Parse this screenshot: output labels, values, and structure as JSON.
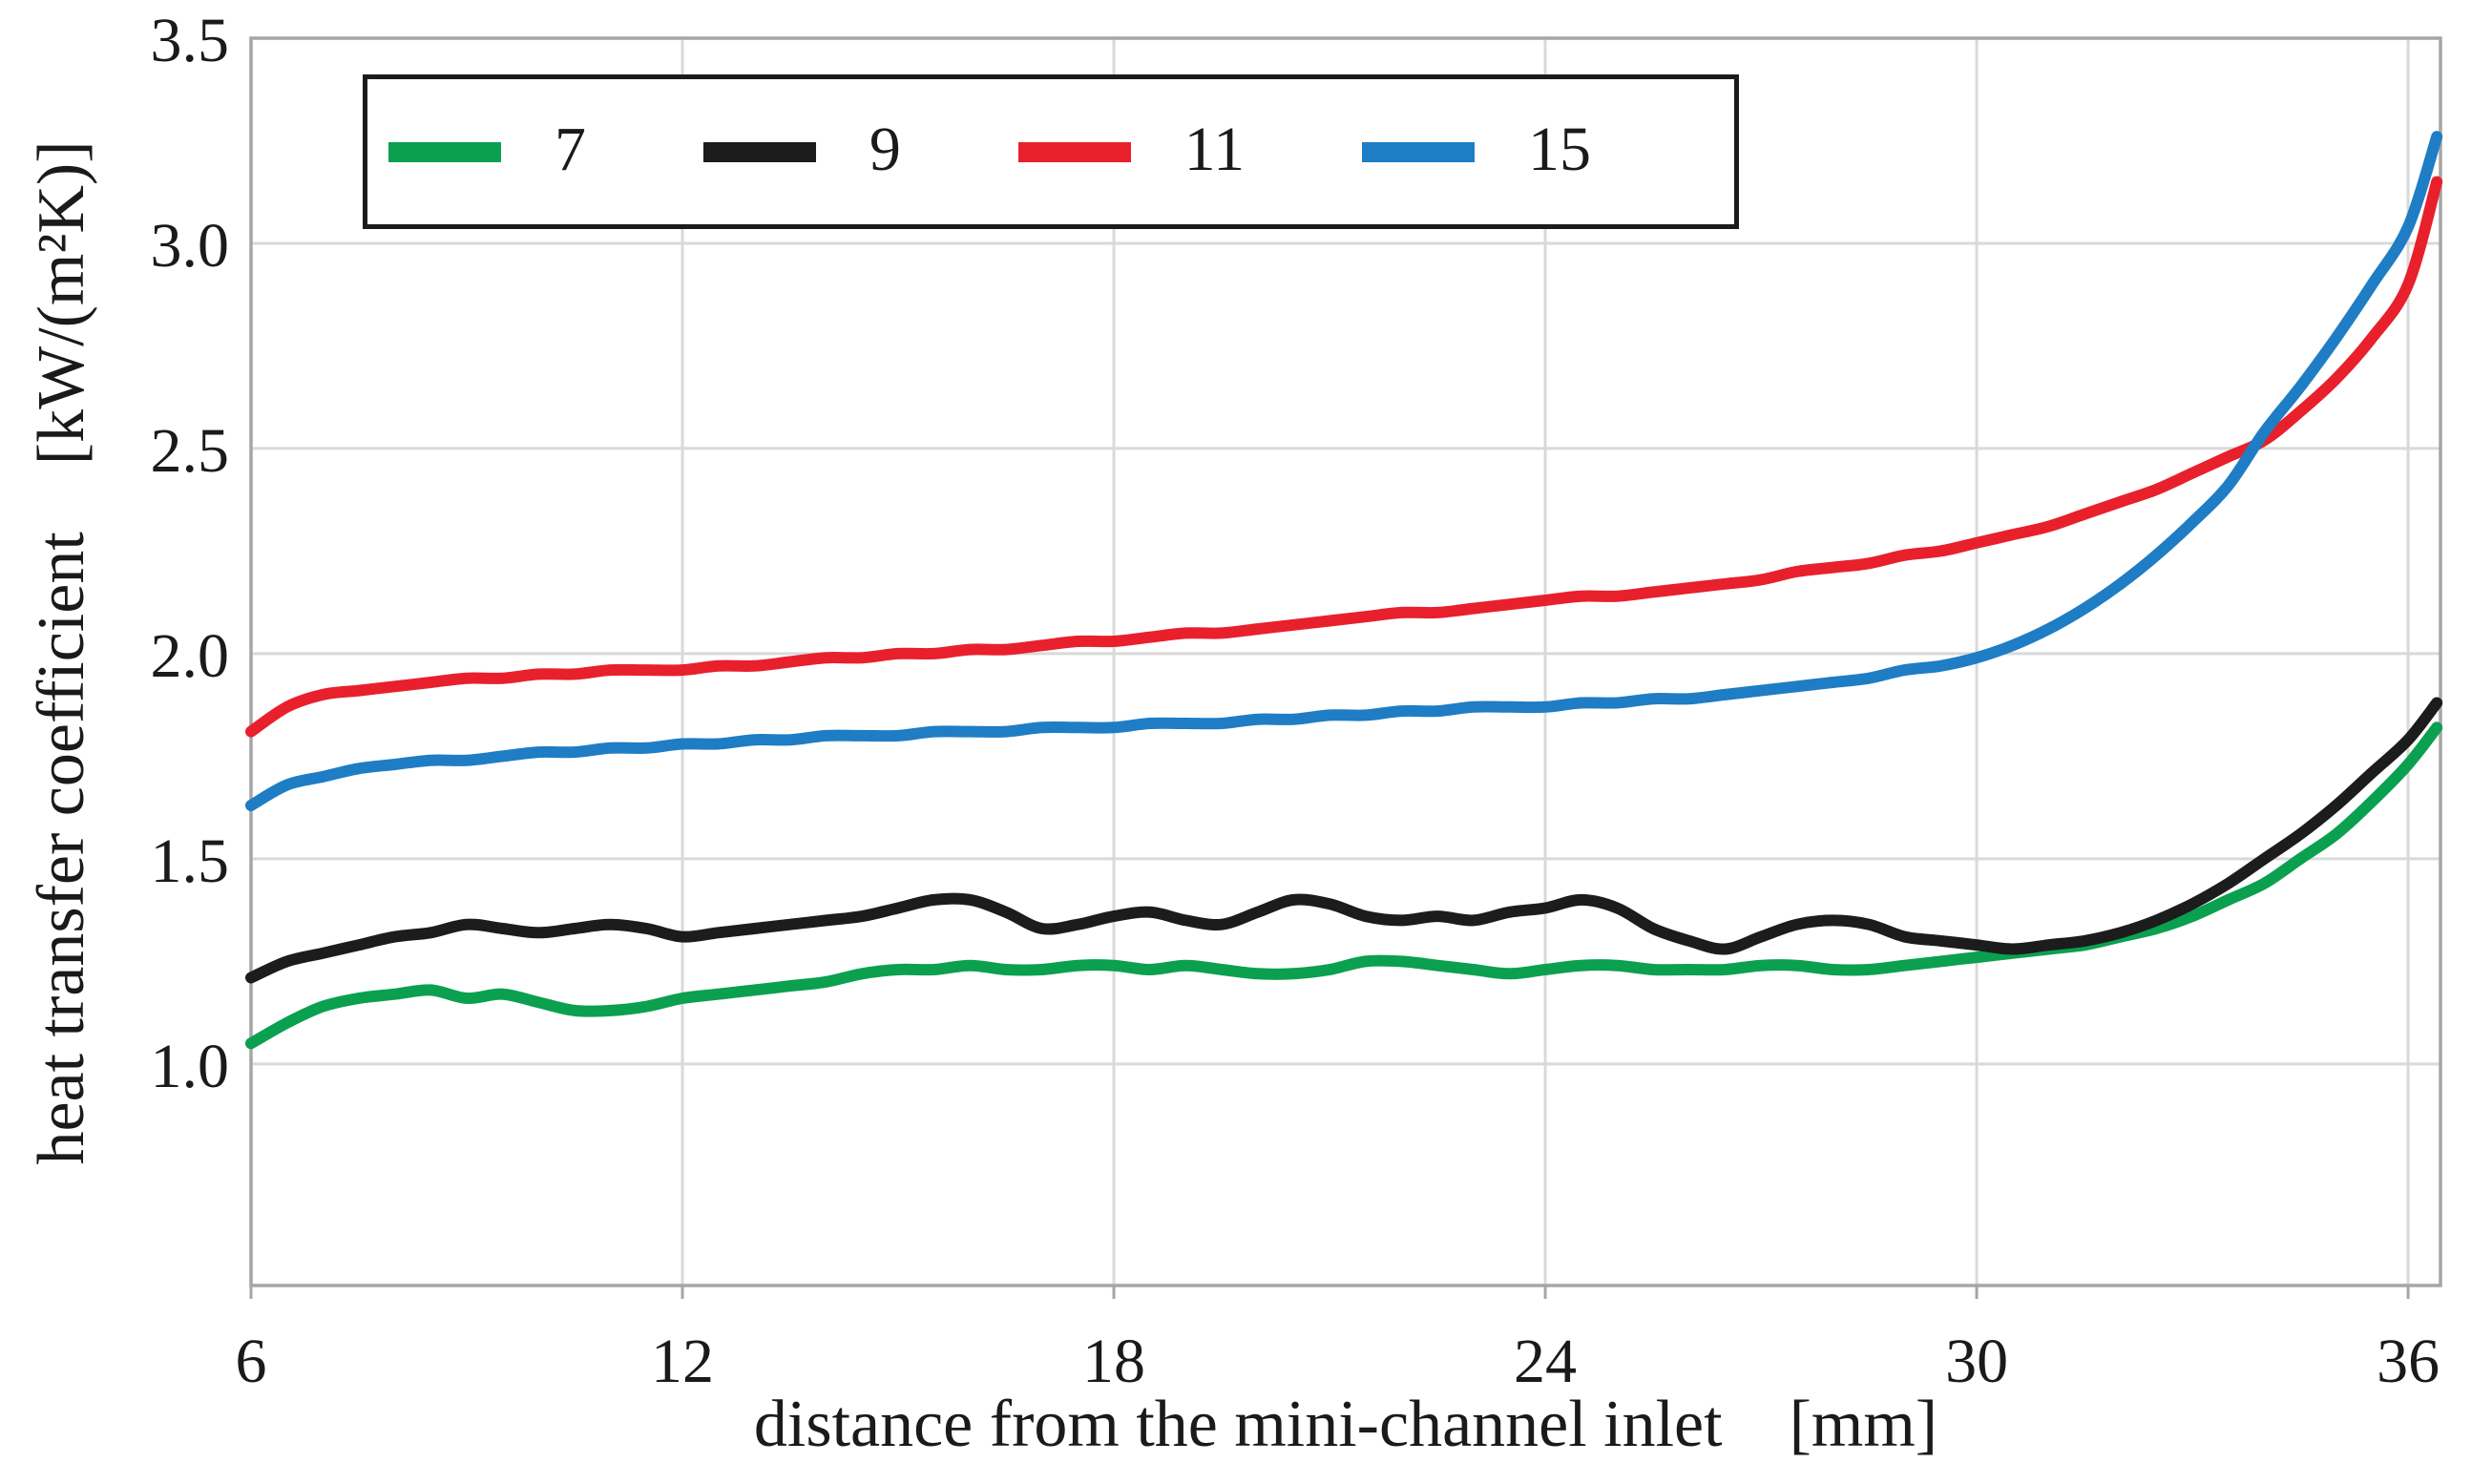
{
  "figure": {
    "background": "#FFFFFF",
    "grid_color": "#D9D9D9",
    "frame_color": "#A6A6A6",
    "text_color": "#1A1A1A"
  },
  "chart_data": {
    "type": "line",
    "title": "",
    "xlabel": "distance from the mini-channel inlet  [mm]",
    "ylabel": "heat transfer coefficient  [kW/(m²K)]",
    "xlim": [
      6,
      36.45
    ],
    "ylim": [
      0.46,
      3.5
    ],
    "grid": true,
    "legend_position": "top-left",
    "x_ticks": [
      6,
      12,
      18,
      24,
      30,
      36
    ],
    "x_tick_labels": [
      "6",
      "12",
      "18",
      "24",
      "30",
      "36"
    ],
    "y_ticks": [
      1.0,
      1.5,
      2.0,
      2.5,
      3.0,
      3.5
    ],
    "y_tick_labels": [
      "1.0",
      "1.5",
      "2.0",
      "2.5",
      "3.0",
      "3.5"
    ],
    "x": [
      6,
      6.5,
      7,
      7.5,
      8,
      8.5,
      9,
      9.5,
      10,
      10.5,
      11,
      11.5,
      12,
      12.5,
      13,
      13.5,
      14,
      14.5,
      15,
      15.5,
      16,
      16.5,
      17,
      17.5,
      18,
      18.5,
      19,
      19.5,
      20,
      20.5,
      21,
      21.5,
      22,
      22.5,
      23,
      23.5,
      24,
      24.5,
      25,
      25.5,
      26,
      26.5,
      27,
      27.5,
      28,
      28.5,
      29,
      29.5,
      30,
      30.5,
      31,
      31.5,
      32,
      32.5,
      33,
      33.5,
      34,
      34.5,
      35,
      35.5,
      36,
      36.4
    ],
    "series": [
      {
        "name": "7",
        "color": "#0AA04F",
        "values": [
          1.05,
          1.1,
          1.14,
          1.16,
          1.17,
          1.18,
          1.16,
          1.17,
          1.15,
          1.13,
          1.13,
          1.14,
          1.16,
          1.17,
          1.18,
          1.19,
          1.2,
          1.22,
          1.23,
          1.23,
          1.24,
          1.23,
          1.23,
          1.24,
          1.24,
          1.23,
          1.24,
          1.23,
          1.22,
          1.22,
          1.23,
          1.25,
          1.25,
          1.24,
          1.23,
          1.22,
          1.23,
          1.24,
          1.24,
          1.23,
          1.23,
          1.23,
          1.24,
          1.24,
          1.23,
          1.23,
          1.24,
          1.25,
          1.26,
          1.27,
          1.28,
          1.29,
          1.31,
          1.33,
          1.36,
          1.4,
          1.44,
          1.5,
          1.56,
          1.64,
          1.73,
          1.82
        ]
      },
      {
        "name": "9",
        "color": "#1C1C1C",
        "values": [
          1.21,
          1.25,
          1.27,
          1.29,
          1.31,
          1.32,
          1.34,
          1.33,
          1.32,
          1.33,
          1.34,
          1.33,
          1.31,
          1.32,
          1.33,
          1.34,
          1.35,
          1.36,
          1.38,
          1.4,
          1.4,
          1.37,
          1.33,
          1.34,
          1.36,
          1.37,
          1.35,
          1.34,
          1.37,
          1.4,
          1.39,
          1.36,
          1.35,
          1.36,
          1.35,
          1.37,
          1.38,
          1.4,
          1.38,
          1.33,
          1.3,
          1.28,
          1.31,
          1.34,
          1.35,
          1.34,
          1.31,
          1.3,
          1.29,
          1.28,
          1.29,
          1.3,
          1.32,
          1.35,
          1.39,
          1.44,
          1.5,
          1.56,
          1.63,
          1.71,
          1.79,
          1.88
        ]
      },
      {
        "name": "11",
        "color": "#E8202C",
        "values": [
          1.81,
          1.87,
          1.9,
          1.91,
          1.92,
          1.93,
          1.94,
          1.94,
          1.95,
          1.95,
          1.96,
          1.96,
          1.96,
          1.97,
          1.97,
          1.98,
          1.99,
          1.99,
          2.0,
          2.0,
          2.01,
          2.01,
          2.02,
          2.03,
          2.03,
          2.04,
          2.05,
          2.05,
          2.06,
          2.07,
          2.08,
          2.09,
          2.1,
          2.1,
          2.11,
          2.12,
          2.13,
          2.14,
          2.14,
          2.15,
          2.16,
          2.17,
          2.18,
          2.2,
          2.21,
          2.22,
          2.24,
          2.25,
          2.27,
          2.29,
          2.31,
          2.34,
          2.37,
          2.4,
          2.44,
          2.48,
          2.52,
          2.59,
          2.67,
          2.77,
          2.9,
          3.15
        ]
      },
      {
        "name": "15",
        "color": "#1E7DC4",
        "values": [
          1.63,
          1.68,
          1.7,
          1.72,
          1.73,
          1.74,
          1.74,
          1.75,
          1.76,
          1.76,
          1.77,
          1.77,
          1.78,
          1.78,
          1.79,
          1.79,
          1.8,
          1.8,
          1.8,
          1.81,
          1.81,
          1.81,
          1.82,
          1.82,
          1.82,
          1.83,
          1.83,
          1.83,
          1.84,
          1.84,
          1.85,
          1.85,
          1.86,
          1.86,
          1.87,
          1.87,
          1.87,
          1.88,
          1.88,
          1.89,
          1.89,
          1.9,
          1.91,
          1.92,
          1.93,
          1.94,
          1.96,
          1.97,
          1.99,
          2.02,
          2.06,
          2.11,
          2.17,
          2.24,
          2.32,
          2.41,
          2.54,
          2.65,
          2.77,
          2.9,
          3.04,
          3.26
        ]
      }
    ]
  }
}
